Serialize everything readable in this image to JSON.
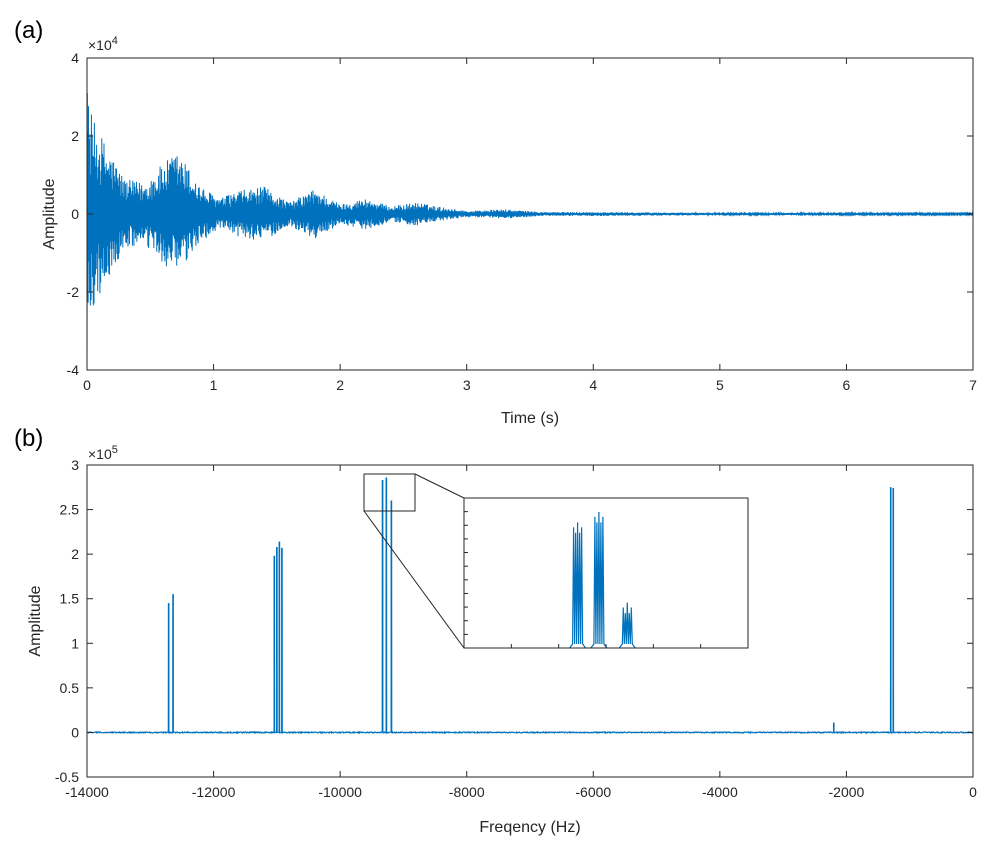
{
  "chart_data": [
    {
      "type": "line",
      "panel_label": "(a)",
      "xlabel": "Time (s)",
      "ylabel": "Amplitude",
      "y_exponent_base": "×10",
      "y_exponent_power": "4",
      "xlim": [
        0,
        7
      ],
      "ylim": [
        -4,
        4
      ],
      "x_ticks": [
        0,
        1,
        2,
        3,
        4,
        5,
        6,
        7
      ],
      "y_ticks": [
        -4,
        -2,
        0,
        2,
        4
      ],
      "grid": false,
      "series_color": "#0072BD",
      "envelope_keypoints": [
        {
          "t": 0.0,
          "amp": 3.1
        },
        {
          "t": 0.05,
          "amp": 2.4
        },
        {
          "t": 0.15,
          "amp": 1.8
        },
        {
          "t": 0.3,
          "amp": 0.9
        },
        {
          "t": 0.45,
          "amp": 0.8
        },
        {
          "t": 0.6,
          "amp": 1.3
        },
        {
          "t": 0.72,
          "amp": 1.6
        },
        {
          "t": 0.9,
          "amp": 0.7
        },
        {
          "t": 1.05,
          "amp": 0.4
        },
        {
          "t": 1.2,
          "amp": 0.6
        },
        {
          "t": 1.4,
          "amp": 0.7
        },
        {
          "t": 1.6,
          "amp": 0.3
        },
        {
          "t": 1.8,
          "amp": 0.65
        },
        {
          "t": 2.0,
          "amp": 0.25
        },
        {
          "t": 2.2,
          "amp": 0.4
        },
        {
          "t": 2.4,
          "amp": 0.2
        },
        {
          "t": 2.6,
          "amp": 0.3
        },
        {
          "t": 2.8,
          "amp": 0.18
        },
        {
          "t": 3.0,
          "amp": 0.08
        },
        {
          "t": 3.3,
          "amp": 0.12
        },
        {
          "t": 3.6,
          "amp": 0.05
        },
        {
          "t": 4.0,
          "amp": 0.05
        },
        {
          "t": 5.0,
          "amp": 0.03
        },
        {
          "t": 7.0,
          "amp": 0.02
        }
      ]
    },
    {
      "type": "line",
      "panel_label": "(b)",
      "xlabel": "Freqency (Hz)",
      "ylabel": "Amplitude",
      "y_exponent_base": "×10",
      "y_exponent_power": "5",
      "xlim": [
        -14000,
        0
      ],
      "ylim": [
        -0.5,
        3
      ],
      "x_ticks": [
        -14000,
        -12000,
        -10000,
        -8000,
        -6000,
        -4000,
        -2000,
        0
      ],
      "y_ticks": [
        -0.5,
        0,
        0.5,
        1,
        1.5,
        2,
        2.5,
        3
      ],
      "grid": false,
      "series_color": "#0072BD",
      "peaks": [
        {
          "x": -12710,
          "y": 1.45
        },
        {
          "x": -12640,
          "y": 1.55
        },
        {
          "x": -11040,
          "y": 1.98
        },
        {
          "x": -11000,
          "y": 2.08
        },
        {
          "x": -10960,
          "y": 2.14
        },
        {
          "x": -10920,
          "y": 2.07
        },
        {
          "x": -9330,
          "y": 2.83
        },
        {
          "x": -9270,
          "y": 2.86
        },
        {
          "x": -9190,
          "y": 2.6
        },
        {
          "x": -2200,
          "y": 0.11
        },
        {
          "x": -1300,
          "y": 2.75
        },
        {
          "x": -1260,
          "y": 2.74
        }
      ],
      "inset": {
        "zoom_xlim": [
          -9650,
          -8850
        ],
        "zoom_ylim": [
          2.47,
          2.9
        ]
      }
    }
  ]
}
